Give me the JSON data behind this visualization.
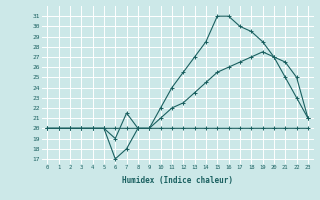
{
  "xlabel": "Humidex (Indice chaleur)",
  "ylabel": "",
  "bg_color": "#cce8e8",
  "line_color": "#1a6060",
  "grid_color": "#ffffff",
  "xlim": [
    -0.5,
    23.5
  ],
  "ylim": [
    16.5,
    32
  ],
  "yticks": [
    17,
    18,
    19,
    20,
    21,
    22,
    23,
    24,
    25,
    26,
    27,
    28,
    29,
    30,
    31
  ],
  "xticks": [
    0,
    1,
    2,
    3,
    4,
    5,
    6,
    7,
    8,
    9,
    10,
    11,
    12,
    13,
    14,
    15,
    16,
    17,
    18,
    19,
    20,
    21,
    22,
    23
  ],
  "line1_x": [
    0,
    1,
    2,
    3,
    4,
    5,
    6,
    7,
    8,
    9,
    10,
    11,
    12,
    13,
    14,
    15,
    16,
    17,
    18,
    19,
    20,
    21,
    22,
    23
  ],
  "line1_y": [
    20,
    20,
    20,
    20,
    20,
    20,
    17,
    18,
    20,
    20,
    20,
    20,
    20,
    20,
    20,
    20,
    20,
    20,
    20,
    20,
    20,
    20,
    20,
    20
  ],
  "line2_x": [
    0,
    1,
    2,
    3,
    4,
    5,
    6,
    7,
    8,
    9,
    10,
    11,
    12,
    13,
    14,
    15,
    16,
    17,
    18,
    19,
    20,
    21,
    22,
    23
  ],
  "line2_y": [
    20,
    20,
    20,
    20,
    20,
    20,
    20,
    20,
    20,
    20,
    21,
    22,
    22.5,
    23.5,
    24.5,
    25.5,
    26,
    26.5,
    27,
    27.5,
    27,
    26.5,
    25,
    21
  ],
  "line3_x": [
    0,
    1,
    2,
    3,
    4,
    5,
    6,
    7,
    8,
    9,
    10,
    11,
    12,
    13,
    14,
    15,
    16,
    17,
    18,
    19,
    20,
    21,
    22,
    23
  ],
  "line3_y": [
    20,
    20,
    20,
    20,
    20,
    20,
    19,
    21.5,
    20,
    20,
    22,
    24,
    25.5,
    27,
    28.5,
    31,
    31,
    30,
    29.5,
    28.5,
    27,
    25,
    23,
    21
  ]
}
